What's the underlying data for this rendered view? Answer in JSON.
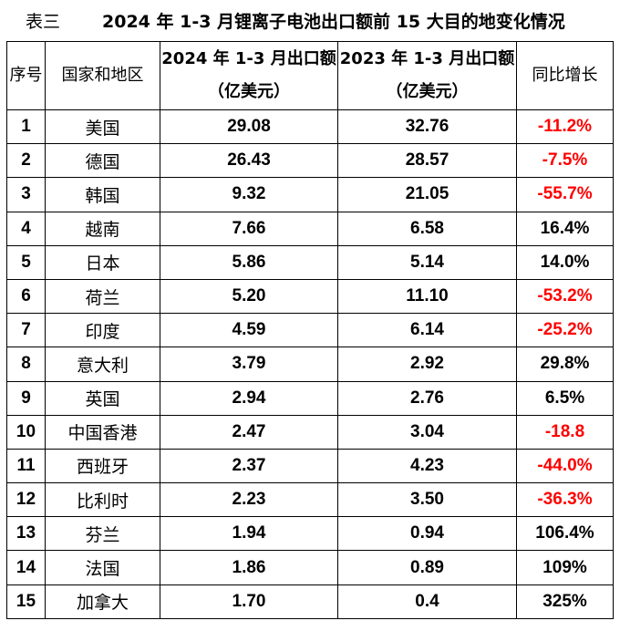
{
  "caption": {
    "label": "表三",
    "title": "2024 年 1-3 月锂离子电池出口额前 15 大目的地变化情况"
  },
  "headers": {
    "index": "序号",
    "region": "国家和地区",
    "val2024": "2024 年 1-3 月出口额（亿美元）",
    "val2023": "2023 年 1-3 月出口额（亿美元）",
    "yoy": "同比增长"
  },
  "rows": [
    {
      "index": "1",
      "region": "美国",
      "val2024": "29.08",
      "val2023": "32.76",
      "yoy": "-11.2%",
      "negative": true
    },
    {
      "index": "2",
      "region": "德国",
      "val2024": "26.43",
      "val2023": "28.57",
      "yoy": "-7.5%",
      "negative": true
    },
    {
      "index": "3",
      "region": "韩国",
      "val2024": "9.32",
      "val2023": "21.05",
      "yoy": "-55.7%",
      "negative": true
    },
    {
      "index": "4",
      "region": "越南",
      "val2024": "7.66",
      "val2023": "6.58",
      "yoy": "16.4%",
      "negative": false
    },
    {
      "index": "5",
      "region": "日本",
      "val2024": "5.86",
      "val2023": "5.14",
      "yoy": "14.0%",
      "negative": false
    },
    {
      "index": "6",
      "region": "荷兰",
      "val2024": "5.20",
      "val2023": "11.10",
      "yoy": "-53.2%",
      "negative": true
    },
    {
      "index": "7",
      "region": "印度",
      "val2024": "4.59",
      "val2023": "6.14",
      "yoy": "-25.2%",
      "negative": true
    },
    {
      "index": "8",
      "region": "意大利",
      "val2024": "3.79",
      "val2023": "2.92",
      "yoy": "29.8%",
      "negative": false
    },
    {
      "index": "9",
      "region": "英国",
      "val2024": "2.94",
      "val2023": "2.76",
      "yoy": "6.5%",
      "negative": false
    },
    {
      "index": "10",
      "region": "中国香港",
      "val2024": "2.47",
      "val2023": "3.04",
      "yoy": "-18.8",
      "negative": true
    },
    {
      "index": "11",
      "region": "西班牙",
      "val2024": "2.37",
      "val2023": "4.23",
      "yoy": "-44.0%",
      "negative": true
    },
    {
      "index": "12",
      "region": "比利时",
      "val2024": "2.23",
      "val2023": "3.50",
      "yoy": "-36.3%",
      "negative": true
    },
    {
      "index": "13",
      "region": "芬兰",
      "val2024": "1.94",
      "val2023": "0.94",
      "yoy": "106.4%",
      "negative": false
    },
    {
      "index": "14",
      "region": "法国",
      "val2024": "1.86",
      "val2023": "0.89",
      "yoy": "109%",
      "negative": false
    },
    {
      "index": "15",
      "region": "加拿大",
      "val2024": "1.70",
      "val2023": "0.4",
      "yoy": "325%",
      "negative": false
    }
  ],
  "colors": {
    "negative": "#ff0000",
    "text": "#000000",
    "border": "#000000"
  }
}
